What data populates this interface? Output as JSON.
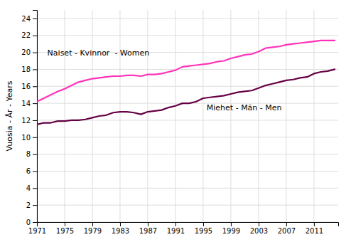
{
  "chart_data": {
    "type": "line",
    "y_label": "Vuosia - År - Years",
    "x": [
      1971,
      1972,
      1973,
      1974,
      1975,
      1976,
      1977,
      1978,
      1979,
      1980,
      1981,
      1982,
      1983,
      1984,
      1985,
      1986,
      1987,
      1988,
      1989,
      1990,
      1991,
      1992,
      1993,
      1994,
      1995,
      1996,
      1997,
      1998,
      1999,
      2000,
      2001,
      2002,
      2003,
      2004,
      2005,
      2006,
      2007,
      2008,
      2009,
      2010,
      2011,
      2012,
      2013,
      2014
    ],
    "series": [
      {
        "color": "#FF33BB",
        "values": [
          14.2,
          14.6,
          15.0,
          15.4,
          15.7,
          16.1,
          16.5,
          16.7,
          16.9,
          17.0,
          17.1,
          17.2,
          17.2,
          17.3,
          17.3,
          17.2,
          17.4,
          17.4,
          17.5,
          17.7,
          17.9,
          18.3,
          18.4,
          18.5,
          18.6,
          18.7,
          18.9,
          19.0,
          19.3,
          19.5,
          19.7,
          19.8,
          20.1,
          20.5,
          20.6,
          20.7,
          20.9,
          21.0,
          21.1,
          21.2,
          21.3,
          21.4,
          21.4,
          21.4
        ]
      },
      {
        "color": "#660044",
        "values": [
          11.5,
          11.7,
          11.7,
          11.9,
          11.9,
          12.0,
          12.0,
          12.1,
          12.3,
          12.5,
          12.6,
          12.9,
          13.0,
          13.0,
          12.9,
          12.7,
          13.0,
          13.1,
          13.2,
          13.5,
          13.7,
          14.0,
          14.0,
          14.2,
          14.6,
          14.7,
          14.8,
          14.9,
          15.1,
          15.3,
          15.4,
          15.5,
          15.8,
          16.1,
          16.3,
          16.5,
          16.7,
          16.8,
          17.0,
          17.1,
          17.5,
          17.7,
          17.8,
          18.0
        ]
      }
    ],
    "annotations": [
      {
        "text": "Naiset - Kvinnor  - Women",
        "x": 1972.5,
        "y": 19.6
      },
      {
        "text": "Miehet - Män - Men",
        "x": 1995.5,
        "y": 13.2
      }
    ],
    "xlim": [
      1971,
      2014.5
    ],
    "xticks": [
      1971,
      1975,
      1979,
      1983,
      1987,
      1991,
      1995,
      1999,
      2003,
      2007,
      2011
    ],
    "ylim": [
      0,
      25
    ],
    "yticks": [
      0,
      2,
      4,
      6,
      8,
      10,
      12,
      14,
      16,
      18,
      20,
      22,
      24
    ],
    "grid": true
  }
}
